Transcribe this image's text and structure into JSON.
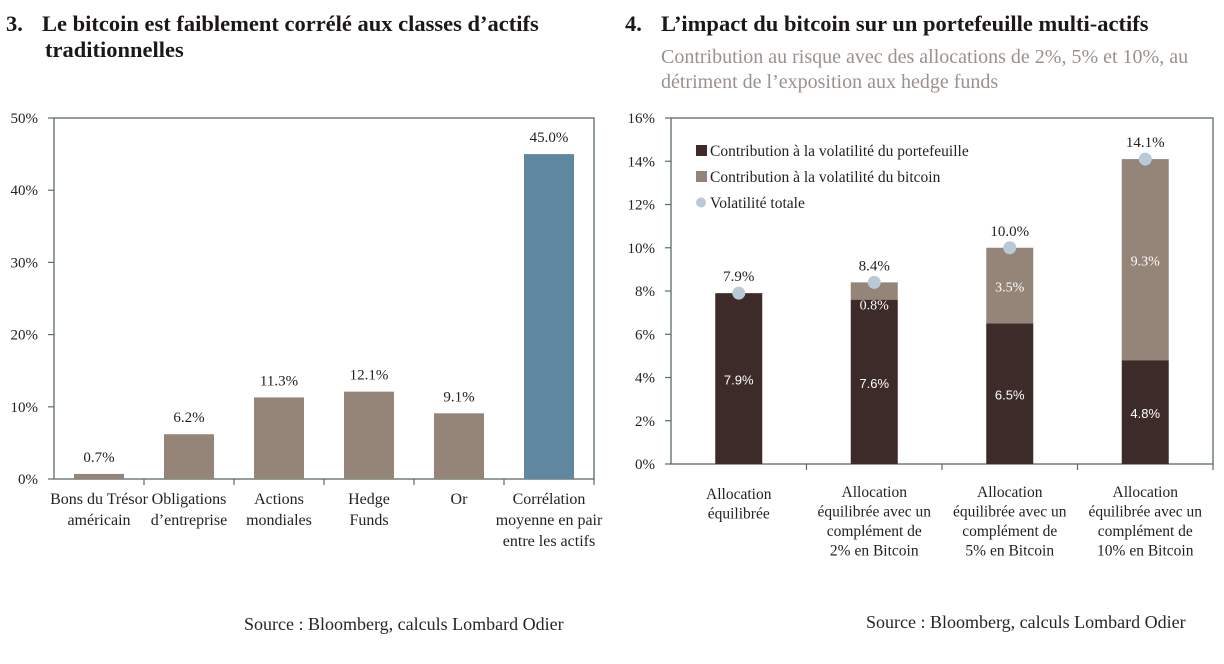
{
  "chart_data": [
    {
      "type": "bar",
      "number": "3.",
      "title_line1": "Le bitcoin est faiblement corrélé aux classes d’actifs",
      "title_line2": "traditionnelles",
      "categories": [
        [
          "Bons du Trésor",
          "américain"
        ],
        [
          "Obligations",
          "d’entreprise"
        ],
        [
          "Actions",
          "mondiales"
        ],
        [
          "Hedge",
          "Funds"
        ],
        [
          "Or"
        ],
        [
          "Corrélation",
          "moyenne en pair",
          "entre les actifs"
        ]
      ],
      "values": [
        0.7,
        6.2,
        11.3,
        12.1,
        9.1,
        45.0
      ],
      "data_labels": [
        "0.7%",
        "6.2%",
        "11.3%",
        "12.1%",
        "9.1%",
        "45.0%"
      ],
      "highlight_index": 5,
      "ylim": [
        0,
        50
      ],
      "yticks": [
        0,
        10,
        20,
        30,
        40,
        50
      ],
      "ytick_labels": [
        "0%",
        "10%",
        "20%",
        "30%",
        "40%",
        "50%"
      ],
      "xlabel": "",
      "ylabel": "",
      "grid": false,
      "colors": {
        "bar": "#958579",
        "highlight": "#5f879f",
        "axis": "#5b6b66"
      },
      "source": "Source : Bloomberg, calculs Lombard Odier"
    },
    {
      "type": "bar",
      "stacked": true,
      "number": "4.",
      "title_line1": "L’impact du bitcoin sur un portefeuille multi-actifs",
      "subtitle": "Contribution au risque avec des allocations de 2%, 5% et 10%, au détriment de l’exposition aux hedge funds",
      "categories": [
        [
          "Allocation",
          "équilibrée"
        ],
        [
          "Allocation",
          "équilibrée avec un",
          "complément de",
          "2% en Bitcoin"
        ],
        [
          "Allocation",
          "équilibrée avec un",
          "complément de",
          "5% en Bitcoin"
        ],
        [
          "Allocation",
          "équilibrée avec un",
          "complément de",
          "10% en Bitcoin"
        ]
      ],
      "series": [
        {
          "name": "Contribution à la volatilité du portefeuille",
          "values": [
            7.9,
            7.6,
            6.5,
            4.8
          ],
          "labels": [
            "7.9%",
            "7.6%",
            "6.5%",
            "4.8%"
          ],
          "color": "#3c2b28"
        },
        {
          "name": "Contribution à la volatilité du bitcoin",
          "values": [
            0,
            0.8,
            3.5,
            9.3
          ],
          "labels": [
            "",
            "0.8%",
            "3.5%",
            "9.3%"
          ],
          "color": "#958579"
        },
        {
          "name": "Volatilité totale",
          "kind": "point",
          "values": [
            7.9,
            8.4,
            10.0,
            14.1
          ],
          "labels": [
            "7.9%",
            "8.4%",
            "10.0%",
            "14.1%"
          ],
          "color": "#b9c9d6"
        }
      ],
      "ylim": [
        0,
        16
      ],
      "yticks": [
        0,
        2,
        4,
        6,
        8,
        10,
        12,
        14,
        16
      ],
      "ytick_labels": [
        "0%",
        "2%",
        "4%",
        "6%",
        "8%",
        "10%",
        "12%",
        "14%",
        "16%"
      ],
      "legend_position": "top-left",
      "xlabel": "",
      "ylabel": "",
      "grid": false,
      "axis_color": "#5b6b66",
      "source": "Source : Bloomberg, calculs Lombard Odier"
    }
  ]
}
